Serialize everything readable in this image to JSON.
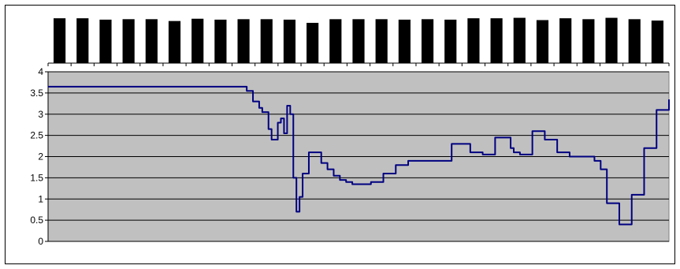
{
  "chart_data": {
    "type": "line",
    "title": "",
    "xlabel": "",
    "ylabel": "",
    "ylim": [
      0,
      4
    ],
    "y_ticks": [
      "0",
      "0.5",
      "1",
      "1.5",
      "2",
      "2.5",
      "3",
      "3.5",
      "4"
    ],
    "grid": "horizontal",
    "legend": "none",
    "colors": {
      "line": "#000080",
      "plot_area": "#c0c0c0",
      "gridline": "#000000",
      "top_bars": "#000000"
    },
    "top_bars": {
      "count": 27,
      "values": [
        0.98,
        0.98,
        0.95,
        0.96,
        0.96,
        0.92,
        0.97,
        0.95,
        0.96,
        0.96,
        0.95,
        0.88,
        0.96,
        0.96,
        0.96,
        0.95,
        0.96,
        0.95,
        0.98,
        0.98,
        0.99,
        0.94,
        0.98,
        0.96,
        0.99,
        0.96,
        0.93
      ]
    },
    "x": [
      0,
      0.05,
      0.1,
      0.15,
      0.2,
      0.25,
      0.28,
      0.3,
      0.31,
      0.32,
      0.33,
      0.34,
      0.345,
      0.355,
      0.36,
      0.37,
      0.375,
      0.38,
      0.385,
      0.39,
      0.395,
      0.4,
      0.405,
      0.41,
      0.42,
      0.43,
      0.44,
      0.45,
      0.46,
      0.47,
      0.48,
      0.49,
      0.5,
      0.52,
      0.54,
      0.56,
      0.58,
      0.6,
      0.62,
      0.65,
      0.68,
      0.7,
      0.72,
      0.745,
      0.75,
      0.76,
      0.78,
      0.8,
      0.82,
      0.84,
      0.86,
      0.88,
      0.89,
      0.9,
      0.92,
      0.94,
      0.96,
      0.98,
      1.0
    ],
    "series": [
      {
        "values": [
          3.65,
          3.65,
          3.65,
          3.65,
          3.65,
          3.65,
          3.65,
          3.65,
          3.65,
          3.55,
          3.3,
          3.15,
          3.05,
          2.65,
          2.4,
          2.8,
          2.9,
          2.55,
          3.2,
          3.0,
          1.5,
          0.7,
          1.05,
          1.6,
          2.1,
          2.1,
          1.85,
          1.7,
          1.55,
          1.45,
          1.4,
          1.35,
          1.35,
          1.4,
          1.6,
          1.8,
          1.9,
          1.9,
          1.9,
          2.3,
          2.1,
          2.05,
          2.45,
          2.2,
          2.1,
          2.05,
          2.6,
          2.4,
          2.1,
          2.0,
          2.0,
          1.9,
          1.7,
          0.9,
          0.4,
          1.1,
          2.2,
          3.1,
          3.35
        ]
      }
    ]
  }
}
